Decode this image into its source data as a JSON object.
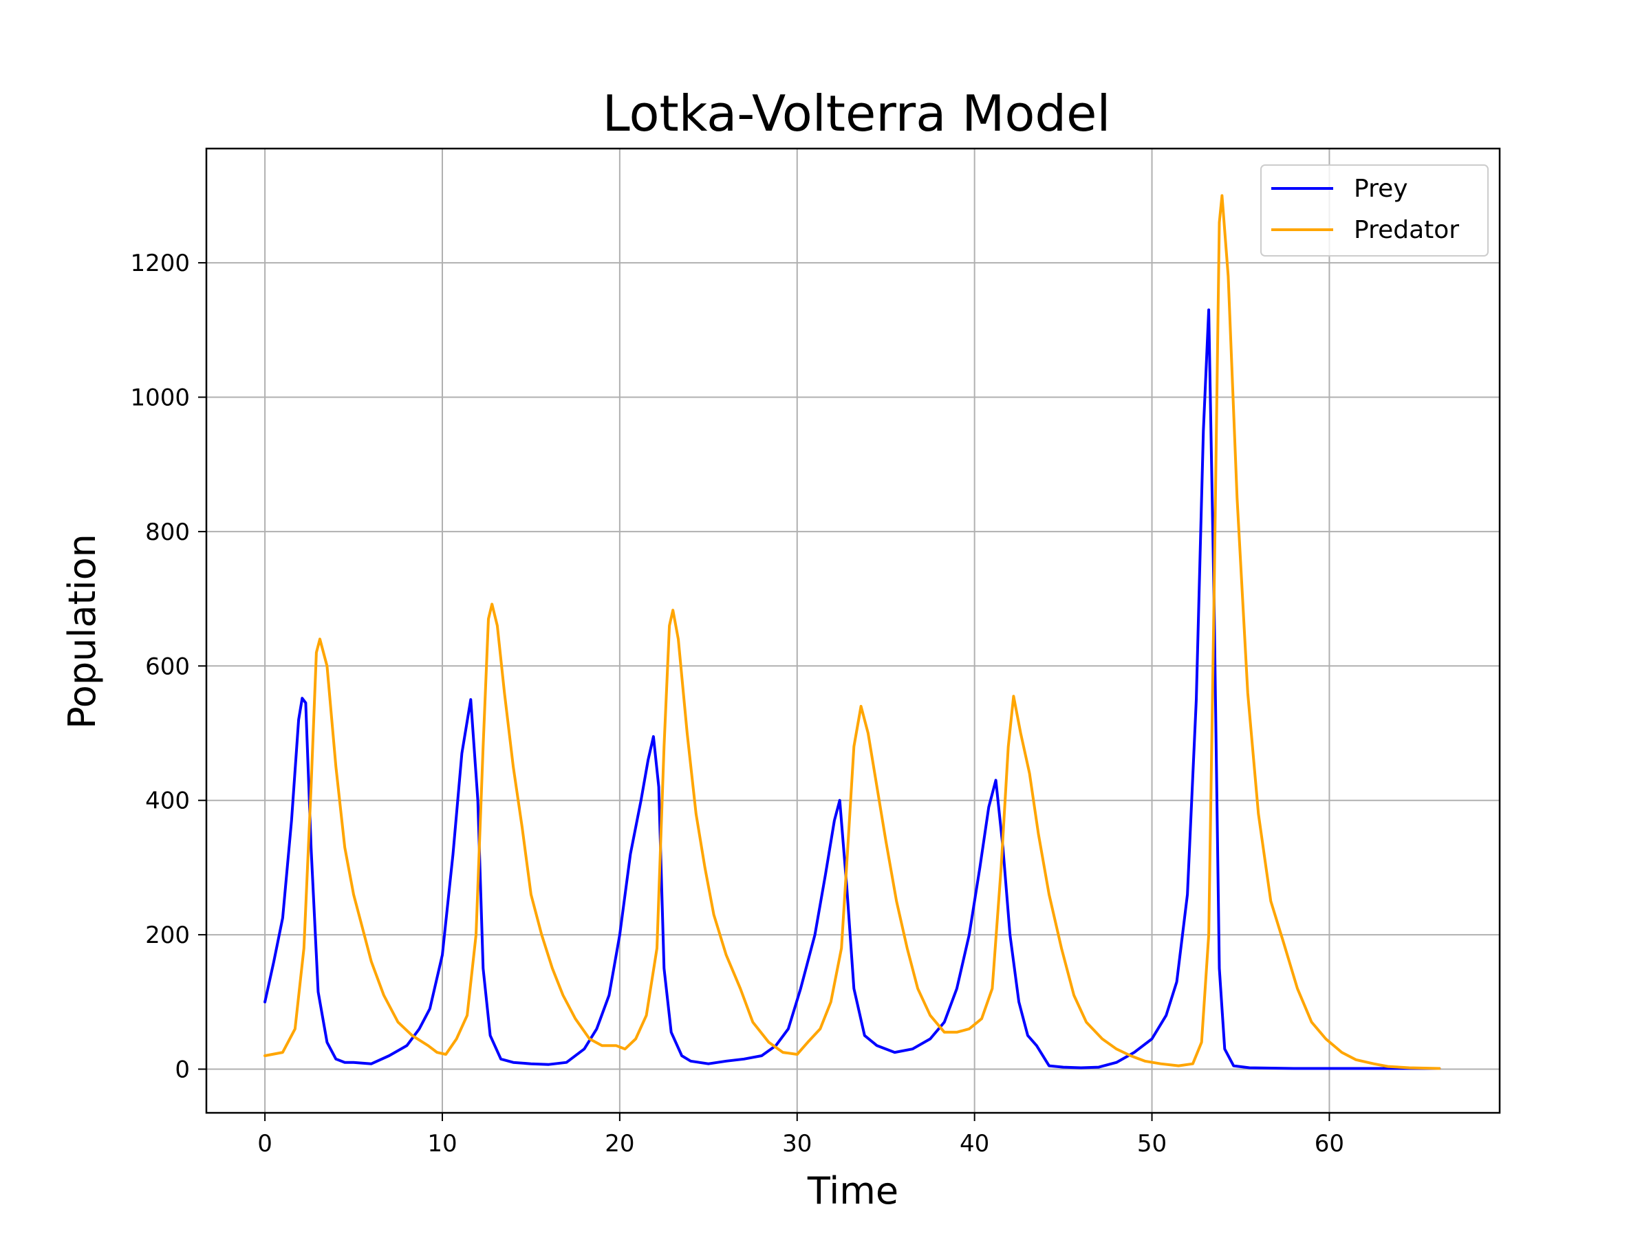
{
  "chart_data": {
    "type": "line",
    "title": "Lotka-Volterra Model",
    "xlabel": "Time",
    "ylabel": "Population",
    "xlim": [
      -3.3,
      69.6
    ],
    "ylim": [
      -65,
      1370
    ],
    "x_ticks": [
      0,
      10,
      20,
      30,
      40,
      50,
      60
    ],
    "y_ticks": [
      0,
      200,
      400,
      600,
      800,
      1000,
      1200
    ],
    "x_tick_labels": [
      "0",
      "10",
      "20",
      "30",
      "40",
      "50",
      "60"
    ],
    "y_tick_labels": [
      "0",
      "200",
      "400",
      "600",
      "800",
      "1000",
      "1200"
    ],
    "grid": true,
    "legend_position": "top-right",
    "series": [
      {
        "name": "Prey",
        "color": "#0000ff",
        "points": [
          [
            0,
            100
          ],
          [
            0.5,
            160
          ],
          [
            1,
            225
          ],
          [
            1.5,
            370
          ],
          [
            1.9,
            520
          ],
          [
            2.1,
            552
          ],
          [
            2.3,
            545
          ],
          [
            2.6,
            330
          ],
          [
            3,
            115
          ],
          [
            3.5,
            40
          ],
          [
            4,
            15
          ],
          [
            4.5,
            10
          ],
          [
            5,
            10
          ],
          [
            6,
            8
          ],
          [
            7,
            20
          ],
          [
            8,
            35
          ],
          [
            8.7,
            60
          ],
          [
            9.3,
            90
          ],
          [
            10,
            170
          ],
          [
            10.6,
            320
          ],
          [
            11.1,
            470
          ],
          [
            11.6,
            550
          ],
          [
            12,
            400
          ],
          [
            12.3,
            150
          ],
          [
            12.7,
            50
          ],
          [
            13.3,
            15
          ],
          [
            14,
            10
          ],
          [
            15,
            8
          ],
          [
            16,
            7
          ],
          [
            17,
            10
          ],
          [
            18,
            30
          ],
          [
            18.7,
            60
          ],
          [
            19.4,
            110
          ],
          [
            20,
            200
          ],
          [
            20.6,
            320
          ],
          [
            21.2,
            400
          ],
          [
            21.6,
            460
          ],
          [
            21.9,
            495
          ],
          [
            22.2,
            420
          ],
          [
            22.5,
            150
          ],
          [
            22.9,
            55
          ],
          [
            23.5,
            20
          ],
          [
            24,
            12
          ],
          [
            25,
            8
          ],
          [
            26,
            12
          ],
          [
            27,
            15
          ],
          [
            28,
            20
          ],
          [
            28.8,
            35
          ],
          [
            29.5,
            60
          ],
          [
            30.2,
            120
          ],
          [
            31,
            200
          ],
          [
            31.6,
            290
          ],
          [
            32.1,
            370
          ],
          [
            32.4,
            400
          ],
          [
            32.8,
            270
          ],
          [
            33.2,
            120
          ],
          [
            33.8,
            50
          ],
          [
            34.5,
            35
          ],
          [
            35.5,
            25
          ],
          [
            36.5,
            30
          ],
          [
            37.5,
            45
          ],
          [
            38.3,
            70
          ],
          [
            39,
            120
          ],
          [
            39.7,
            200
          ],
          [
            40.3,
            300
          ],
          [
            40.8,
            390
          ],
          [
            41.2,
            430
          ],
          [
            41.6,
            330
          ],
          [
            42,
            200
          ],
          [
            42.5,
            100
          ],
          [
            43,
            50
          ],
          [
            43.5,
            35
          ],
          [
            44.2,
            5
          ],
          [
            45,
            3
          ],
          [
            46,
            2
          ],
          [
            47,
            3
          ],
          [
            48,
            10
          ],
          [
            49,
            25
          ],
          [
            50,
            45
          ],
          [
            50.8,
            80
          ],
          [
            51.4,
            130
          ],
          [
            52,
            260
          ],
          [
            52.5,
            550
          ],
          [
            52.9,
            950
          ],
          [
            53.2,
            1130
          ],
          [
            53.5,
            700
          ],
          [
            53.8,
            150
          ],
          [
            54.1,
            30
          ],
          [
            54.6,
            5
          ],
          [
            55.5,
            2
          ],
          [
            58,
            1
          ],
          [
            62,
            1
          ],
          [
            66.2,
            1
          ]
        ]
      },
      {
        "name": "Predator",
        "color": "#ffa500",
        "points": [
          [
            0,
            20
          ],
          [
            1,
            25
          ],
          [
            1.7,
            60
          ],
          [
            2.2,
            180
          ],
          [
            2.6,
            420
          ],
          [
            2.9,
            620
          ],
          [
            3.1,
            640
          ],
          [
            3.5,
            600
          ],
          [
            4,
            450
          ],
          [
            4.5,
            330
          ],
          [
            5,
            260
          ],
          [
            5.5,
            210
          ],
          [
            6,
            160
          ],
          [
            6.7,
            110
          ],
          [
            7.5,
            70
          ],
          [
            8.3,
            50
          ],
          [
            9.2,
            35
          ],
          [
            9.7,
            25
          ],
          [
            10.2,
            22
          ],
          [
            10.8,
            45
          ],
          [
            11.4,
            80
          ],
          [
            11.9,
            200
          ],
          [
            12.3,
            480
          ],
          [
            12.6,
            670
          ],
          [
            12.8,
            692
          ],
          [
            13.1,
            660
          ],
          [
            13.5,
            560
          ],
          [
            14,
            450
          ],
          [
            14.5,
            360
          ],
          [
            15,
            260
          ],
          [
            15.6,
            200
          ],
          [
            16.2,
            150
          ],
          [
            16.8,
            110
          ],
          [
            17.5,
            75
          ],
          [
            18.3,
            45
          ],
          [
            19,
            35
          ],
          [
            19.8,
            35
          ],
          [
            20.3,
            30
          ],
          [
            20.9,
            45
          ],
          [
            21.5,
            80
          ],
          [
            22.1,
            180
          ],
          [
            22.5,
            480
          ],
          [
            22.8,
            660
          ],
          [
            23,
            683
          ],
          [
            23.3,
            640
          ],
          [
            23.8,
            500
          ],
          [
            24.3,
            380
          ],
          [
            24.8,
            300
          ],
          [
            25.3,
            230
          ],
          [
            26,
            170
          ],
          [
            26.8,
            120
          ],
          [
            27.5,
            70
          ],
          [
            28.4,
            40
          ],
          [
            29.2,
            25
          ],
          [
            30,
            22
          ],
          [
            30.6,
            40
          ],
          [
            31.3,
            60
          ],
          [
            31.9,
            100
          ],
          [
            32.5,
            180
          ],
          [
            32.9,
            350
          ],
          [
            33.2,
            480
          ],
          [
            33.6,
            540
          ],
          [
            34,
            500
          ],
          [
            34.5,
            420
          ],
          [
            35,
            340
          ],
          [
            35.6,
            250
          ],
          [
            36.2,
            180
          ],
          [
            36.8,
            120
          ],
          [
            37.5,
            80
          ],
          [
            38.3,
            55
          ],
          [
            39,
            55
          ],
          [
            39.7,
            60
          ],
          [
            40.4,
            75
          ],
          [
            41,
            120
          ],
          [
            41.5,
            300
          ],
          [
            41.9,
            480
          ],
          [
            42.2,
            555
          ],
          [
            42.6,
            500
          ],
          [
            43.1,
            440
          ],
          [
            43.6,
            350
          ],
          [
            44.2,
            260
          ],
          [
            44.9,
            180
          ],
          [
            45.6,
            110
          ],
          [
            46.3,
            70
          ],
          [
            47.2,
            45
          ],
          [
            48,
            30
          ],
          [
            48.8,
            20
          ],
          [
            49.6,
            12
          ],
          [
            50.5,
            8
          ],
          [
            51.5,
            5
          ],
          [
            52.3,
            8
          ],
          [
            52.8,
            40
          ],
          [
            53.2,
            200
          ],
          [
            53.5,
            700
          ],
          [
            53.8,
            1260
          ],
          [
            53.95,
            1300
          ],
          [
            54.3,
            1180
          ],
          [
            54.8,
            850
          ],
          [
            55.4,
            560
          ],
          [
            56,
            380
          ],
          [
            56.7,
            250
          ],
          [
            57.4,
            190
          ],
          [
            58.2,
            120
          ],
          [
            59,
            70
          ],
          [
            59.8,
            45
          ],
          [
            60.7,
            25
          ],
          [
            61.5,
            14
          ],
          [
            62.5,
            8
          ],
          [
            63.3,
            4
          ],
          [
            64.5,
            2
          ],
          [
            66.2,
            1
          ]
        ]
      }
    ]
  }
}
